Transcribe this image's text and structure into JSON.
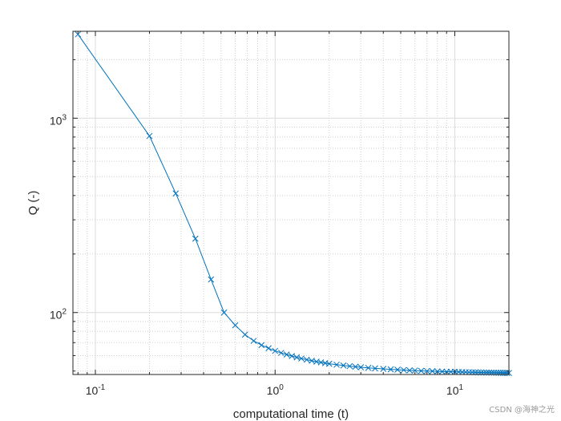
{
  "chart_data": {
    "type": "line",
    "title": "",
    "xlabel": "computational time (t)",
    "ylabel": "Q (-)",
    "x_scale": "log",
    "y_scale": "log",
    "xlim": [
      0.075,
      20
    ],
    "ylim": [
      48,
      2800
    ],
    "x_ticks": [
      {
        "value": 0.1,
        "base": "10",
        "exp": "-1"
      },
      {
        "value": 1,
        "base": "10",
        "exp": "0"
      },
      {
        "value": 10,
        "base": "10",
        "exp": "1"
      }
    ],
    "y_ticks": [
      {
        "value": 100,
        "base": "10",
        "exp": "2"
      },
      {
        "value": 1000,
        "base": "10",
        "exp": "3"
      }
    ],
    "grid": "major-and-minor",
    "marker": "x",
    "line_color": "#0072BD",
    "series": [
      {
        "name": "",
        "points": [
          [
            0.08,
            2700
          ],
          [
            0.2,
            810
          ],
          [
            0.28,
            410
          ],
          [
            0.36,
            240
          ],
          [
            0.44,
            148
          ],
          [
            0.52,
            100
          ],
          [
            0.6,
            86
          ],
          [
            0.68,
            77
          ],
          [
            0.76,
            71.5
          ],
          [
            0.84,
            68
          ],
          [
            0.92,
            65.5
          ],
          [
            1.0,
            63.5
          ],
          [
            1.08,
            62
          ],
          [
            1.16,
            60.8
          ],
          [
            1.24,
            59.7
          ],
          [
            1.32,
            58.8
          ],
          [
            1.4,
            58
          ],
          [
            1.5,
            57.2
          ],
          [
            1.6,
            56.5
          ],
          [
            1.7,
            55.9
          ],
          [
            1.8,
            55.4
          ],
          [
            1.9,
            54.9
          ],
          [
            2.0,
            54.5
          ],
          [
            2.2,
            53.9
          ],
          [
            2.4,
            53.4
          ],
          [
            2.6,
            53.0
          ],
          [
            2.8,
            52.6
          ],
          [
            3.0,
            52.3
          ],
          [
            3.3,
            51.9
          ],
          [
            3.6,
            51.6
          ],
          [
            4.0,
            51.3
          ],
          [
            4.4,
            51.0
          ],
          [
            4.8,
            50.8
          ],
          [
            5.2,
            50.6
          ],
          [
            5.6,
            50.4
          ],
          [
            6.0,
            50.3
          ],
          [
            6.5,
            50.1
          ],
          [
            7.0,
            50.0
          ],
          [
            7.5,
            49.9
          ],
          [
            8.0,
            49.8
          ],
          [
            8.5,
            49.7
          ],
          [
            9.0,
            49.6
          ],
          [
            9.5,
            49.55
          ],
          [
            10.0,
            49.5
          ],
          [
            10.5,
            49.45
          ],
          [
            11.0,
            49.4
          ],
          [
            11.5,
            49.35
          ],
          [
            12.0,
            49.3
          ],
          [
            12.5,
            49.25
          ],
          [
            13.0,
            49.2
          ],
          [
            13.5,
            49.18
          ],
          [
            14.0,
            49.15
          ],
          [
            14.5,
            49.12
          ],
          [
            15.0,
            49.1
          ],
          [
            15.5,
            49.08
          ],
          [
            16.0,
            49.05
          ],
          [
            16.5,
            49.03
          ],
          [
            17.0,
            49.0
          ],
          [
            17.5,
            48.98
          ],
          [
            18.0,
            48.96
          ],
          [
            18.5,
            48.94
          ],
          [
            19.0,
            48.92
          ],
          [
            19.5,
            48.9
          ],
          [
            20.0,
            48.88
          ]
        ]
      }
    ]
  },
  "watermark": "CSDN @海神之光"
}
